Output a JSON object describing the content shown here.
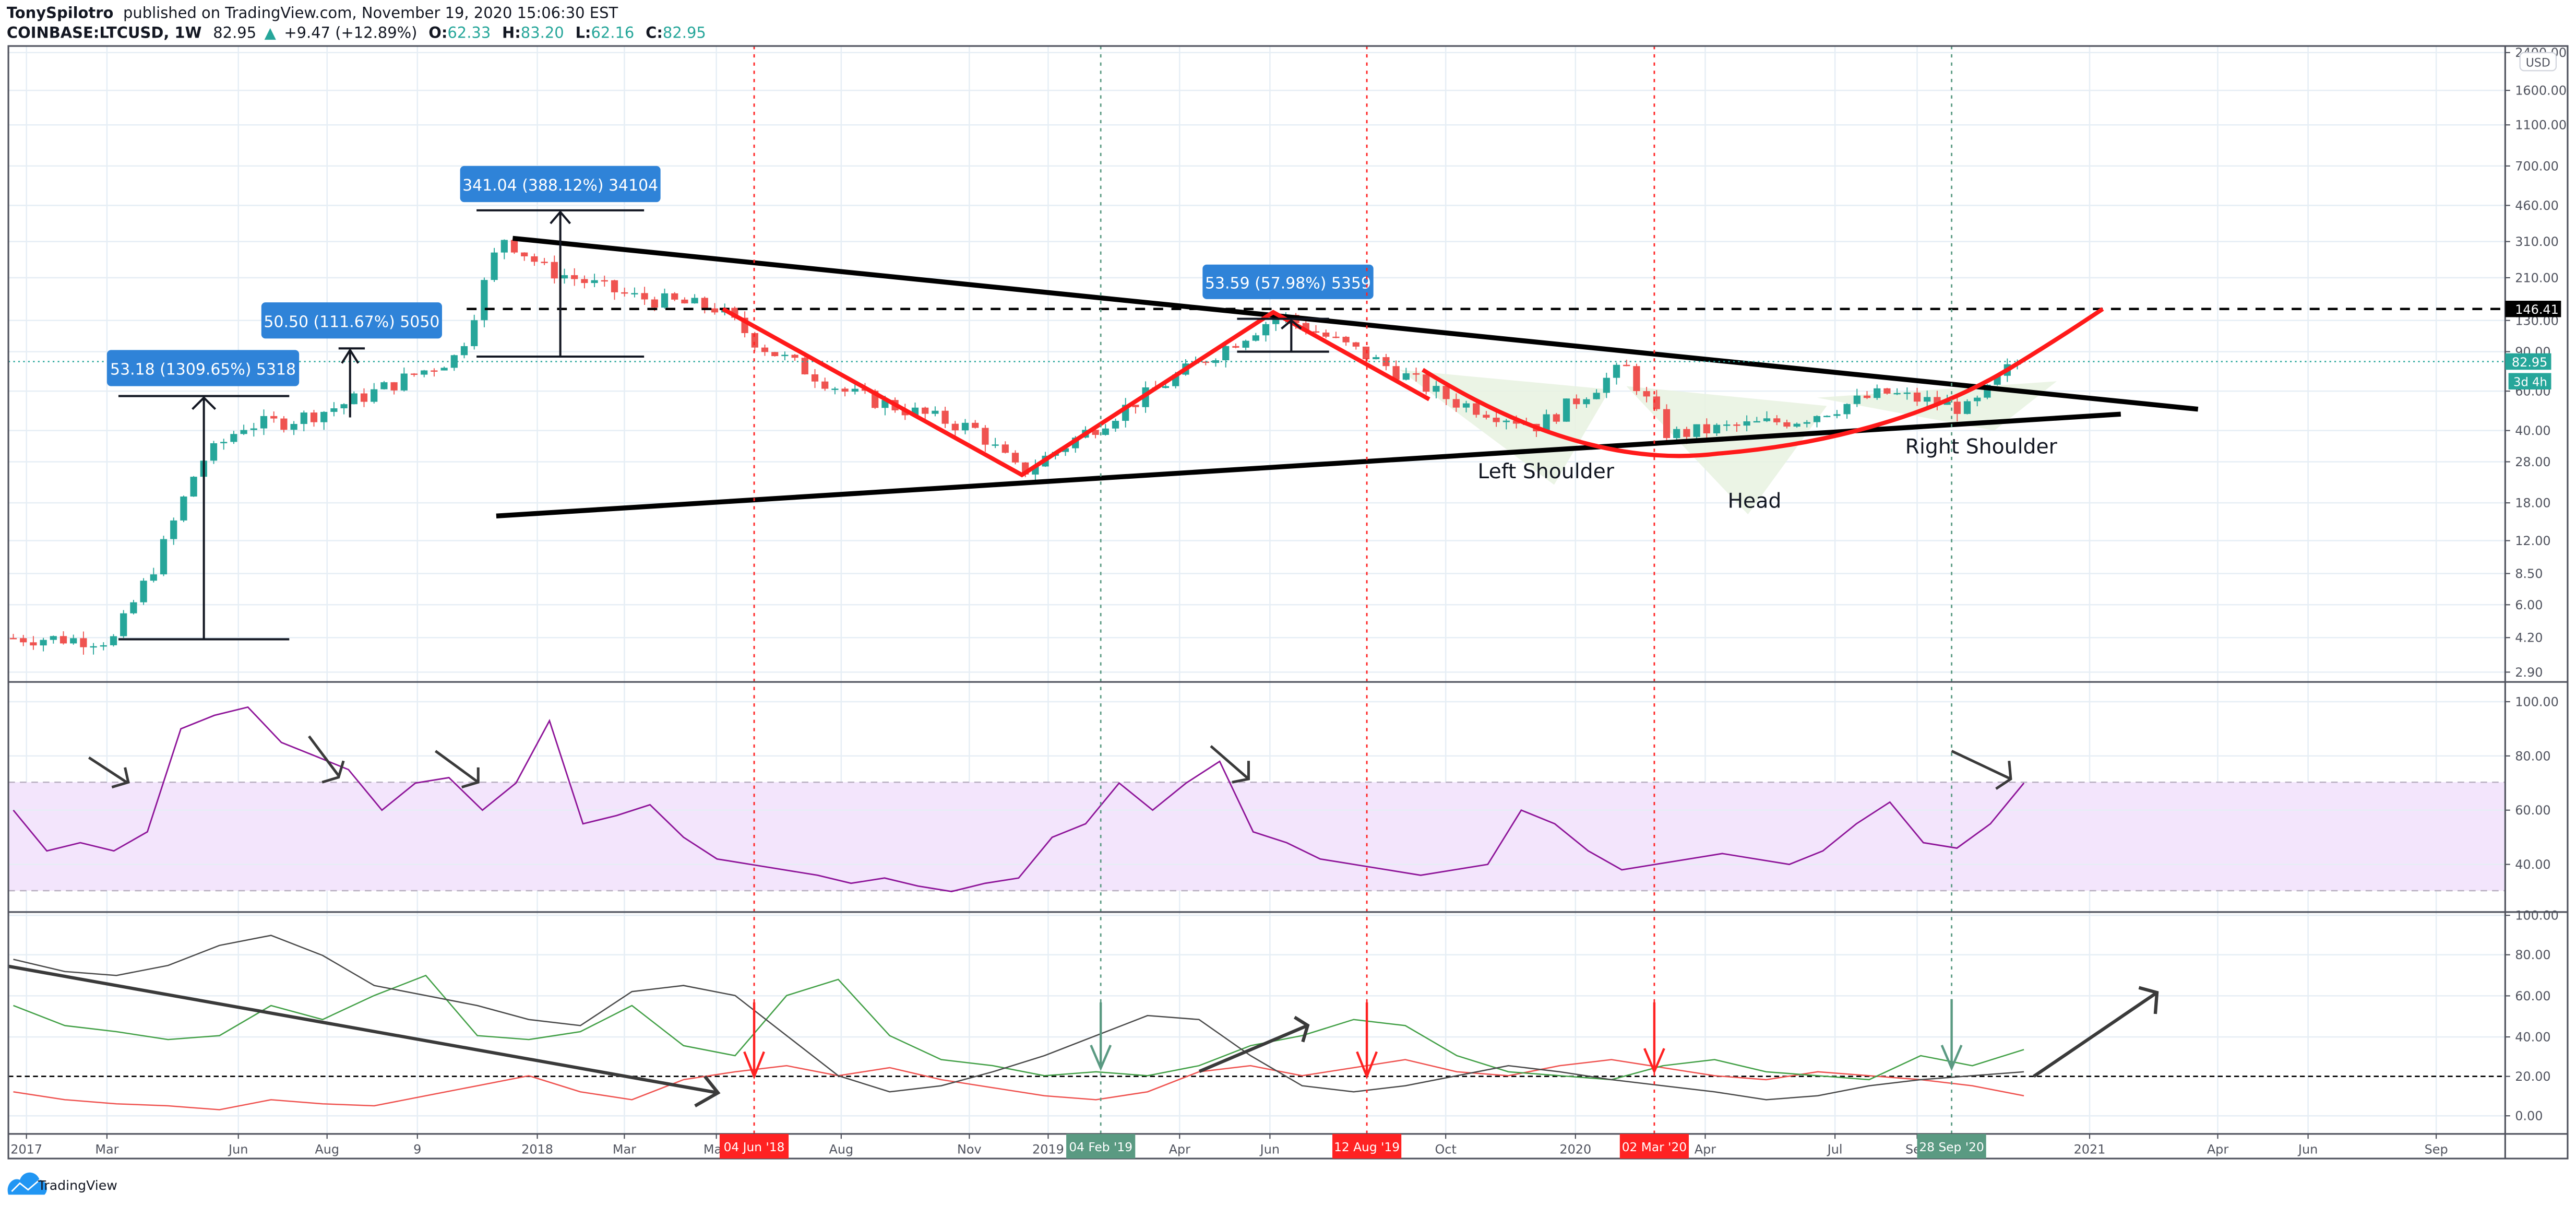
{
  "header": {
    "author": "TonySpilotro",
    "published": "published on TradingView.com, November 19, 2020 15:06:30 EST",
    "symbol": "COINBASE:LTCUSD, 1W",
    "last": "82.95",
    "change": "+9.47 (+12.89%)",
    "o_label": "O:",
    "o": "62.33",
    "h_label": "H:",
    "h": "83.20",
    "l_label": "L:",
    "l": "62.16",
    "c_label": "C:",
    "c": "82.95"
  },
  "colors": {
    "up": "#26a69a",
    "down": "#ef5350",
    "note": "#2f83d8",
    "rsi": "#8e1599",
    "rsi_band": "#f3e5fc",
    "dmi_adx": "#4a4a4a",
    "dmi_plus": "#43a047",
    "dmi_minus": "#ef5350",
    "red_marker": "#ff2222",
    "green_marker": "#5a9a82"
  },
  "price_axis": {
    "currency": "USD",
    "ticks": [
      "2400.00",
      "1600.00",
      "1100.00",
      "700.00",
      "460.00",
      "310.00",
      "210.00",
      "130.00",
      "90.00",
      "60.00",
      "40.00",
      "28.00",
      "18.00",
      "12.00",
      "8.50",
      "6.00",
      "4.20",
      "2.90"
    ],
    "last_price_label": "82.95",
    "countdown_label": "3d 4h",
    "horizontal_line_label": "146.41"
  },
  "rsi_axis": {
    "ticks": [
      "100.00",
      "80.00",
      "60.00",
      "40.00"
    ]
  },
  "dmi_axis": {
    "ticks": [
      "100.00",
      "80.00",
      "60.00",
      "40.00",
      "20.00",
      "0.00"
    ]
  },
  "time_axis": {
    "ticks": [
      "2017",
      "Mar",
      "Jun",
      "Aug",
      "9",
      "2018",
      "Mar",
      "May",
      "Aug",
      "Nov",
      "2019",
      "Apr",
      "Jun",
      "Oct",
      "2020",
      "Apr",
      "Jul",
      "Sep",
      "2021",
      "Apr",
      "Jun",
      "Sep"
    ],
    "markers": [
      {
        "label": "04 Jun '18",
        "color": "red"
      },
      {
        "label": "04 Feb '19",
        "color": "green"
      },
      {
        "label": "12 Aug '19",
        "color": "red"
      },
      {
        "label": "02 Mar '20",
        "color": "red"
      },
      {
        "label": "28 Sep '20",
        "color": "green"
      }
    ]
  },
  "annotations": {
    "measure_1": "53.18 (1309.65%) 5318",
    "measure_2": "50.50 (111.67%) 5050",
    "measure_3": "341.04 (388.12%) 34104",
    "measure_4": "53.59 (57.98%) 5359",
    "left_shoulder": "Left Shoulder",
    "head": "Head",
    "right_shoulder": "Right Shoulder"
  },
  "footer": {
    "brand": "TradingView"
  },
  "chart_data": [
    {
      "type": "candlestick",
      "title": "COINBASE:LTCUSD, 1W",
      "scale": "log",
      "ylabel": "USD",
      "ylim": [
        2.9,
        2400
      ],
      "x_range": [
        "2017-01",
        "2021-09"
      ],
      "key_levels": {
        "resistance_dashed": 146.41,
        "last": 82.95
      },
      "approx_path": [
        {
          "date": "2017-01",
          "close": 4.2
        },
        {
          "date": "2017-03",
          "close": 4.1
        },
        {
          "date": "2017-04",
          "close": 9.5
        },
        {
          "date": "2017-05",
          "close": 28
        },
        {
          "date": "2017-06",
          "close": 42
        },
        {
          "date": "2017-07",
          "close": 44
        },
        {
          "date": "2017-08",
          "close": 50
        },
        {
          "date": "2017-09",
          "close": 60
        },
        {
          "date": "2017-11",
          "close": 90
        },
        {
          "date": "2017-12",
          "close": 330
        },
        {
          "date": "2018-01",
          "close": 230
        },
        {
          "date": "2018-03",
          "close": 170
        },
        {
          "date": "2018-05",
          "close": 150
        },
        {
          "date": "2018-06",
          "close": 100
        },
        {
          "date": "2018-08",
          "close": 60
        },
        {
          "date": "2018-11",
          "close": 40
        },
        {
          "date": "2018-12",
          "close": 25
        },
        {
          "date": "2019-02",
          "close": 45
        },
        {
          "date": "2019-04",
          "close": 80
        },
        {
          "date": "2019-06",
          "close": 140
        },
        {
          "date": "2019-08",
          "close": 90
        },
        {
          "date": "2019-10",
          "close": 55
        },
        {
          "date": "2019-12",
          "close": 42
        },
        {
          "date": "2020-02",
          "close": 80
        },
        {
          "date": "2020-03",
          "close": 38
        },
        {
          "date": "2020-06",
          "close": 45
        },
        {
          "date": "2020-08",
          "close": 60
        },
        {
          "date": "2020-10",
          "close": 50
        },
        {
          "date": "2020-11",
          "close": 82.95
        }
      ],
      "drawings": [
        "symmetrical triangle (descending resistance, ascending support)",
        "inverse head and shoulders",
        "cup arc to 146.41",
        "V-shape 2018-2019"
      ]
    },
    {
      "type": "line",
      "title": "RSI",
      "ylim": [
        20,
        100
      ],
      "bands": {
        "upper": 70,
        "lower": 30
      },
      "series": [
        {
          "name": "RSI",
          "approx_values": [
            60,
            45,
            48,
            45,
            52,
            90,
            95,
            98,
            85,
            80,
            75,
            60,
            70,
            72,
            60,
            70,
            93,
            55,
            58,
            62,
            50,
            42,
            40,
            38,
            36,
            33,
            35,
            32,
            30,
            33,
            35,
            50,
            55,
            70,
            60,
            70,
            78,
            52,
            48,
            42,
            40,
            38,
            36,
            38,
            40,
            60,
            55,
            45,
            38,
            40,
            42,
            44,
            42,
            40,
            45,
            55,
            63,
            48,
            46,
            55,
            70
          ]
        }
      ]
    },
    {
      "type": "line",
      "title": "DMI",
      "ylim": [
        0,
        100
      ],
      "reference_line": 20,
      "series": [
        {
          "name": "ADX",
          "approx_values": [
            78,
            72,
            70,
            75,
            85,
            90,
            80,
            65,
            60,
            55,
            48,
            45,
            62,
            65,
            60,
            40,
            20,
            12,
            15,
            22,
            30,
            40,
            50,
            48,
            30,
            15,
            12,
            15,
            20,
            25,
            22,
            18,
            15,
            12,
            8,
            10,
            15,
            18,
            20,
            22
          ]
        },
        {
          "name": "+DI",
          "approx_values": [
            55,
            45,
            42,
            38,
            40,
            55,
            48,
            60,
            70,
            40,
            38,
            42,
            55,
            35,
            30,
            60,
            68,
            40,
            28,
            25,
            20,
            22,
            20,
            25,
            35,
            40,
            48,
            45,
            30,
            22,
            20,
            18,
            25,
            28,
            22,
            20,
            18,
            30,
            25,
            33
          ]
        },
        {
          "name": "-DI",
          "approx_values": [
            12,
            8,
            6,
            5,
            3,
            8,
            6,
            5,
            10,
            15,
            20,
            12,
            8,
            18,
            22,
            25,
            20,
            24,
            18,
            14,
            10,
            8,
            12,
            22,
            25,
            20,
            24,
            28,
            22,
            20,
            25,
            28,
            24,
            20,
            18,
            22,
            20,
            18,
            15,
            10
          ]
        }
      ]
    }
  ]
}
